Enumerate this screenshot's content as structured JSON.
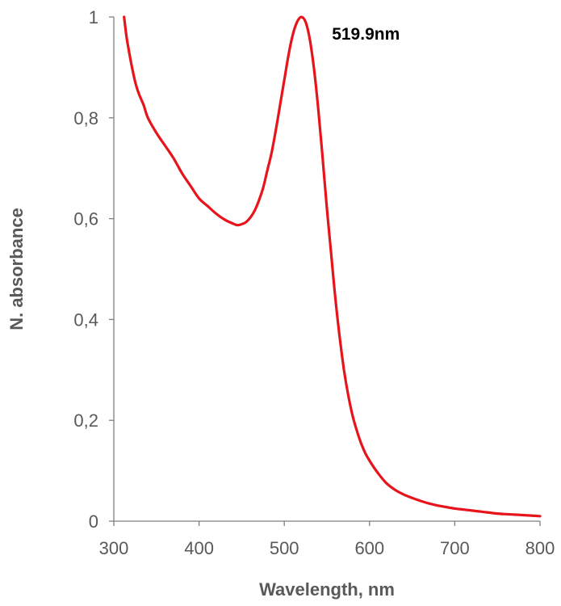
{
  "chart_data": {
    "type": "line",
    "title": "",
    "xlabel": "Wavelength, nm",
    "ylabel": "N. absorbance",
    "xlim": [
      300,
      800
    ],
    "ylim": [
      0,
      1
    ],
    "x_ticks": [
      300,
      400,
      500,
      600,
      700,
      800
    ],
    "x_tick_labels": [
      "300",
      "400",
      "500",
      "600",
      "700",
      "800"
    ],
    "y_ticks": [
      0,
      0.2,
      0.4,
      0.6,
      0.8,
      1
    ],
    "y_tick_labels": [
      "0",
      "0,2",
      "0,4",
      "0,6",
      "0,8",
      "1"
    ],
    "grid": false,
    "legend": "none",
    "annotations": [
      {
        "text": "519.9nm",
        "x": 519.9,
        "y": 1.0
      }
    ],
    "series": [
      {
        "color": "#e8141c",
        "x": [
          312,
          315,
          318,
          322,
          326,
          330,
          335,
          340,
          350,
          360,
          370,
          380,
          390,
          400,
          410,
          420,
          430,
          440,
          445,
          450,
          455,
          460,
          465,
          470,
          475,
          480,
          485,
          490,
          495,
          500,
          505,
          510,
          515,
          519.9,
          525,
          530,
          535,
          540,
          545,
          550,
          555,
          560,
          565,
          570,
          575,
          580,
          585,
          590,
          595,
          600,
          610,
          620,
          630,
          640,
          650,
          660,
          670,
          680,
          690,
          700,
          710,
          720,
          730,
          740,
          750,
          760,
          770,
          780,
          790,
          800
        ],
        "values": [
          1.0,
          0.96,
          0.93,
          0.895,
          0.865,
          0.845,
          0.825,
          0.8,
          0.77,
          0.745,
          0.72,
          0.69,
          0.665,
          0.64,
          0.625,
          0.61,
          0.598,
          0.59,
          0.587,
          0.589,
          0.593,
          0.602,
          0.615,
          0.635,
          0.66,
          0.695,
          0.73,
          0.775,
          0.825,
          0.875,
          0.925,
          0.965,
          0.99,
          1.0,
          0.99,
          0.955,
          0.895,
          0.815,
          0.72,
          0.62,
          0.53,
          0.44,
          0.365,
          0.3,
          0.25,
          0.21,
          0.18,
          0.155,
          0.135,
          0.12,
          0.095,
          0.075,
          0.062,
          0.053,
          0.046,
          0.04,
          0.035,
          0.031,
          0.028,
          0.025,
          0.023,
          0.021,
          0.019,
          0.017,
          0.015,
          0.014,
          0.013,
          0.012,
          0.011,
          0.01
        ]
      }
    ]
  }
}
